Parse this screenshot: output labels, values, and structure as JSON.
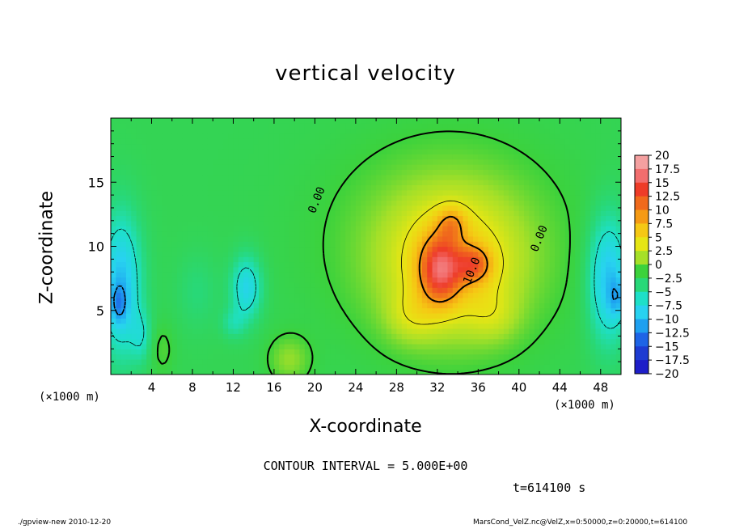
{
  "chart_data": {
    "type": "heatmap",
    "title": "vertical velocity",
    "xlabel": "X-coordinate",
    "ylabel": "Z-coordinate",
    "x_unit_label": "(×1000 m)",
    "xlim": [
      0,
      50
    ],
    "ylim": [
      0,
      20
    ],
    "x_ticks": [
      4,
      8,
      12,
      16,
      20,
      24,
      28,
      32,
      36,
      40,
      44,
      48
    ],
    "y_ticks": [
      5,
      10,
      15
    ],
    "colorbar": {
      "range": [
        -20,
        20
      ],
      "labels": [
        "20",
        "17.5",
        "15",
        "12.5",
        "10",
        "7.5",
        "5",
        "2.5",
        "0",
        "−2.5",
        "−5",
        "−7.5",
        "−10",
        "−12.5",
        "−15",
        "−17.5",
        "−20"
      ],
      "colors": [
        "#f4a0a0",
        "#f26e6e",
        "#ee3c28",
        "#f06a1c",
        "#f59a14",
        "#f5c814",
        "#e6e614",
        "#a6e028",
        "#3cd23c",
        "#28d878",
        "#1ee0c8",
        "#28d2f0",
        "#1ea0f0",
        "#1e64e6",
        "#1e3cd2",
        "#1e1ec8",
        "#6e14b4"
      ]
    },
    "contour_labels": [
      {
        "text": "0.00",
        "x": 20.5,
        "z": 13.5
      },
      {
        "text": "0.00",
        "x": 42.3,
        "z": 10.5
      },
      {
        "text": "10.0",
        "x": 35.7,
        "z": 8.0
      }
    ],
    "field": {
      "background": -1,
      "blobs": [
        {
          "x": 32.3,
          "z": 8.2,
          "sx": 2.0,
          "sz": 2.6,
          "a": 10.5
        },
        {
          "x": 33.4,
          "z": 11.8,
          "sx": 1.4,
          "sz": 1.3,
          "a": 4.5
        },
        {
          "x": 35.6,
          "z": 8.6,
          "sx": 1.7,
          "sz": 1.4,
          "a": 7.0
        },
        {
          "x": 33.5,
          "z": 8.5,
          "sx": 6.5,
          "sz": 5.5,
          "a": 6.0
        },
        {
          "x": 29.5,
          "z": 4.5,
          "sx": 2.5,
          "sz": 2.0,
          "a": 2.5
        },
        {
          "x": 37.5,
          "z": 4.5,
          "sx": 2.5,
          "sz": 2.0,
          "a": 2.0
        },
        {
          "x": 33.0,
          "z": 10.5,
          "sx": 11.0,
          "sz": 7.5,
          "a": 3.0
        },
        {
          "x": 1.0,
          "z": 7.0,
          "sx": 2.0,
          "sz": 5.5,
          "a": -7.5
        },
        {
          "x": 0.8,
          "z": 5.5,
          "sx": 0.8,
          "sz": 1.5,
          "a": -4.0
        },
        {
          "x": 3.0,
          "z": 3.0,
          "sx": 1.0,
          "sz": 2.0,
          "a": -3.0
        },
        {
          "x": 48.8,
          "z": 7.5,
          "sx": 2.0,
          "sz": 5.0,
          "a": -7.5
        },
        {
          "x": 49.6,
          "z": 6.0,
          "sx": 0.8,
          "sz": 1.5,
          "a": -3.5
        },
        {
          "x": 13.3,
          "z": 6.8,
          "sx": 1.5,
          "sz": 2.5,
          "a": -6.0
        },
        {
          "x": 12.0,
          "z": 4.0,
          "sx": 1.2,
          "sz": 1.2,
          "a": -2.5
        },
        {
          "x": 8.5,
          "z": 6.5,
          "sx": 2.0,
          "sz": 3.0,
          "a": -1.5
        },
        {
          "x": 17.5,
          "z": 1.2,
          "sx": 2.0,
          "sz": 1.8,
          "a": 3.0
        },
        {
          "x": 5.0,
          "z": 2.0,
          "sx": 1.2,
          "sz": 2.0,
          "a": 1.5
        }
      ]
    }
  },
  "annotations": {
    "contour_interval": "CONTOUR INTERVAL = 5.000E+00",
    "time": "t=614100 s",
    "footer_left": "./gpview-new   2010-12-20",
    "footer_right": "MarsCond_VelZ.nc@VelZ,x=0:50000,z=0:20000,t=614100"
  }
}
